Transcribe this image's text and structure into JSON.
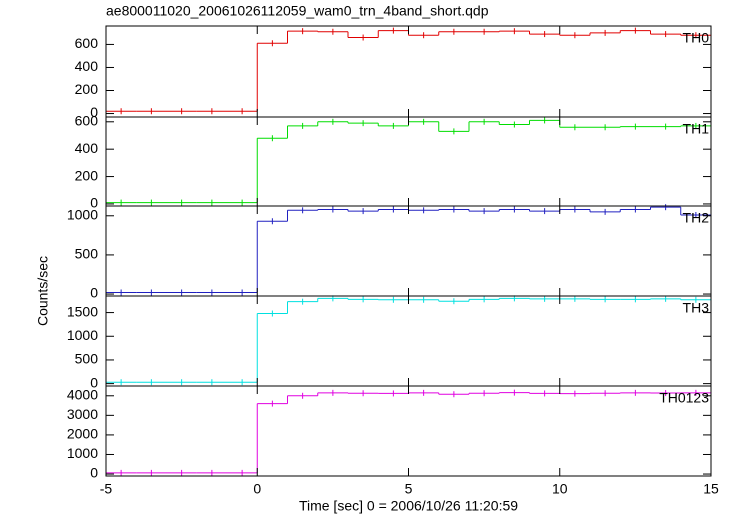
{
  "chart_data": [
    {
      "type": "histogram",
      "title": "ae800011020_20061026112059_wam0_trn_4band_short.qdp",
      "label": "TH0",
      "color": "#e00000",
      "bins": [
        -5,
        -4,
        -3,
        -2,
        -1,
        0,
        1,
        2,
        3,
        4,
        5,
        6,
        7,
        8,
        9,
        10,
        11,
        12,
        13,
        14,
        15
      ],
      "values": [
        20,
        20,
        20,
        20,
        20,
        610,
        715,
        710,
        660,
        720,
        680,
        710,
        710,
        715,
        690,
        680,
        700,
        720,
        690,
        680
      ],
      "xlim": [
        -5,
        15
      ],
      "xticks": [
        -5,
        0,
        5,
        10,
        15
      ],
      "ylim": [
        -30,
        760
      ],
      "yticks": [
        0,
        200,
        400,
        600
      ]
    },
    {
      "type": "histogram",
      "label": "TH1",
      "color": "#00dd00",
      "bins": [
        -5,
        -4,
        -3,
        -2,
        -1,
        0,
        1,
        2,
        3,
        4,
        5,
        6,
        7,
        8,
        9,
        10,
        11,
        12,
        13,
        14,
        15
      ],
      "values": [
        10,
        10,
        10,
        10,
        10,
        480,
        570,
        600,
        590,
        570,
        600,
        530,
        600,
        580,
        610,
        560,
        560,
        565,
        565,
        570
      ],
      "xlim": [
        -5,
        15
      ],
      "xticks": [
        -5,
        0,
        5,
        10,
        15
      ],
      "ylim": [
        -15,
        635
      ],
      "yticks": [
        0,
        200,
        400,
        600
      ]
    },
    {
      "type": "histogram",
      "label": "TH2",
      "y_label": "Counts/sec",
      "color": "#2020c0",
      "bins": [
        -5,
        -4,
        -3,
        -2,
        -1,
        0,
        1,
        2,
        3,
        4,
        5,
        6,
        7,
        8,
        9,
        10,
        11,
        12,
        13,
        14,
        15
      ],
      "values": [
        20,
        20,
        20,
        20,
        20,
        930,
        1070,
        1080,
        1060,
        1080,
        1070,
        1080,
        1060,
        1080,
        1060,
        1080,
        1050,
        1080,
        1110,
        1010
      ],
      "xlim": [
        -5,
        15
      ],
      "xticks": [
        -5,
        0,
        5,
        10,
        15
      ],
      "ylim": [
        -25,
        1125
      ],
      "yticks": [
        0,
        500,
        1000
      ]
    },
    {
      "type": "histogram",
      "label": "TH3",
      "color": "#00e0e0",
      "bins": [
        -5,
        -4,
        -3,
        -2,
        -1,
        0,
        1,
        2,
        3,
        4,
        5,
        6,
        7,
        8,
        9,
        10,
        11,
        12,
        13,
        14,
        15
      ],
      "values": [
        30,
        30,
        30,
        30,
        30,
        1480,
        1730,
        1800,
        1780,
        1770,
        1770,
        1740,
        1780,
        1800,
        1790,
        1790,
        1780,
        1780,
        1790,
        1770
      ],
      "xlim": [
        -5,
        15
      ],
      "xticks": [
        -5,
        0,
        5,
        10,
        15
      ],
      "ylim": [
        -50,
        1850
      ],
      "yticks": [
        0,
        500,
        1000,
        1500
      ]
    },
    {
      "type": "histogram",
      "label": "TH0123",
      "x_label": "Time [sec] 0 = 2006/10/26 11:20:59",
      "color": "#e000e0",
      "bins": [
        -5,
        -4,
        -3,
        -2,
        -1,
        0,
        1,
        2,
        3,
        4,
        5,
        6,
        7,
        8,
        9,
        10,
        11,
        12,
        13,
        14,
        15
      ],
      "values": [
        60,
        60,
        60,
        60,
        60,
        3600,
        4000,
        4150,
        4130,
        4120,
        4150,
        4080,
        4130,
        4160,
        4120,
        4110,
        4130,
        4150,
        4140,
        4150
      ],
      "xlim": [
        -5,
        15
      ],
      "xticks": [
        -5,
        0,
        5,
        10,
        15
      ],
      "ylim": [
        -100,
        4500
      ],
      "yticks": [
        0,
        1000,
        2000,
        3000,
        4000
      ],
      "xtick_labels": true
    }
  ]
}
